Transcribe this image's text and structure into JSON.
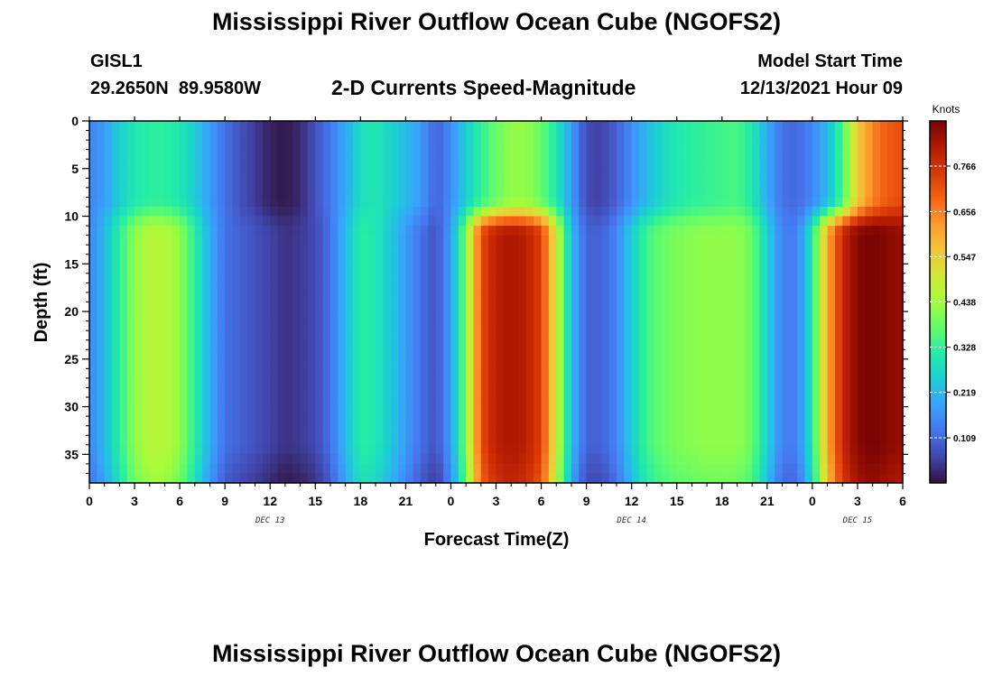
{
  "chart_data": {
    "type": "heatmap",
    "title": "Mississippi River Outflow Ocean Cube (NGOFS2)",
    "subtitle": "2-D Currents Speed-Magnitude",
    "station": {
      "id": "GISL1",
      "location": "29.2650N  89.9580W"
    },
    "model_start": {
      "label": "Model Start Time",
      "value": "12/13/2021 Hour 09"
    },
    "xlabel": "Forecast Time(Z)",
    "ylabel": "Depth (ft)",
    "xlim": [
      0,
      54
    ],
    "ylim": [
      0,
      38
    ],
    "y_reversed": true,
    "x_tick_labels": [
      "0",
      "3",
      "6",
      "9",
      "12",
      "15",
      "18",
      "21",
      "0",
      "3",
      "6",
      "9",
      "12",
      "15",
      "18",
      "21",
      "0",
      "3",
      "6"
    ],
    "y_tick_labels": [
      "0",
      "5",
      "10",
      "15",
      "20",
      "25",
      "30",
      "35"
    ],
    "day_labels": [
      {
        "label": "DEC 13",
        "x": 12
      },
      {
        "label": "DEC 14",
        "x": 36
      },
      {
        "label": "DEC 15",
        "x": 51
      }
    ],
    "colorbar": {
      "unit": "Knots",
      "min": 0.0,
      "max": 0.875,
      "labels": [
        "0.766",
        "0.656",
        "0.547",
        "0.438",
        "0.328",
        "0.219",
        "0.109"
      ],
      "colors": [
        "#30123b",
        "#4145ab",
        "#4675ed",
        "#39a2fc",
        "#1bcfd4",
        "#24eca6",
        "#61fc6c",
        "#a4fc3b",
        "#d1e834",
        "#f3c63a",
        "#fe9b2d",
        "#f36315",
        "#d93806",
        "#b11901",
        "#7a0402"
      ]
    },
    "speed_profiles": {
      "hours": [
        0,
        1,
        2,
        3,
        4,
        5,
        6,
        7,
        8,
        9,
        10,
        11,
        12,
        13,
        14,
        15,
        16,
        17,
        18,
        19,
        20,
        21,
        22,
        23,
        24,
        25,
        26,
        27,
        28,
        29,
        30,
        31,
        32,
        33,
        34,
        35,
        36,
        37,
        38,
        39,
        40,
        41,
        42,
        43,
        44,
        45,
        46,
        47,
        48,
        49,
        50,
        51,
        52,
        53,
        54
      ],
      "surface_0_to_9ft": [
        0.15,
        0.18,
        0.25,
        0.3,
        0.32,
        0.32,
        0.3,
        0.25,
        0.18,
        0.12,
        0.08,
        0.05,
        0.02,
        0.01,
        0.03,
        0.08,
        0.13,
        0.2,
        0.28,
        0.3,
        0.26,
        0.22,
        0.18,
        0.1,
        0.16,
        0.25,
        0.33,
        0.38,
        0.42,
        0.42,
        0.38,
        0.3,
        0.18,
        0.07,
        0.06,
        0.1,
        0.16,
        0.22,
        0.27,
        0.3,
        0.32,
        0.33,
        0.34,
        0.35,
        0.3,
        0.2,
        0.12,
        0.11,
        0.15,
        0.22,
        0.35,
        0.55,
        0.65,
        0.7,
        0.72
      ],
      "lower_11_to_38ft": [
        0.15,
        0.22,
        0.32,
        0.42,
        0.46,
        0.46,
        0.42,
        0.32,
        0.2,
        0.12,
        0.1,
        0.08,
        0.06,
        0.04,
        0.05,
        0.07,
        0.12,
        0.22,
        0.32,
        0.3,
        0.24,
        0.18,
        0.12,
        0.08,
        0.18,
        0.4,
        0.72,
        0.8,
        0.82,
        0.8,
        0.74,
        0.5,
        0.22,
        0.1,
        0.1,
        0.15,
        0.25,
        0.34,
        0.38,
        0.4,
        0.41,
        0.42,
        0.42,
        0.42,
        0.38,
        0.26,
        0.14,
        0.14,
        0.3,
        0.6,
        0.78,
        0.86,
        0.88,
        0.86,
        0.84
      ]
    }
  },
  "footer_title": "Mississippi River Outflow Ocean Cube (NGOFS2)"
}
